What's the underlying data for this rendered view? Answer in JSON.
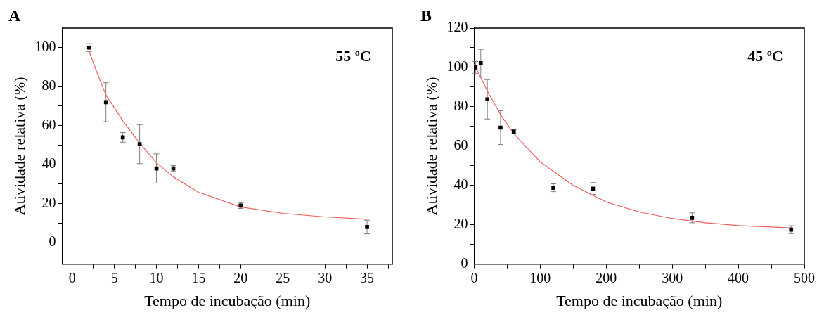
{
  "chart_data": [
    {
      "type": "scatter",
      "title": "A",
      "xlabel": "Tempo de incubação (min)",
      "ylabel": "Atividade relativa (%)",
      "annotations": [
        "55 ºC"
      ],
      "grid": false,
      "legend": false,
      "xlim": [
        -1.2,
        38
      ],
      "ylim": [
        -11,
        110
      ],
      "xticks": [
        0,
        {
          "value": 2.5,
          "label": null
        },
        5,
        {
          "value": 7.5,
          "label": null
        },
        10,
        {
          "value": 12.5,
          "label": null
        },
        15,
        {
          "value": 17.5,
          "label": null
        },
        20,
        {
          "value": 22.5,
          "label": null
        },
        25,
        {
          "value": 27.5,
          "label": null
        },
        30,
        {
          "value": 32.5,
          "label": null
        },
        35,
        {
          "value": 37.5,
          "label": null
        }
      ],
      "yticks": [
        0,
        {
          "value": 10,
          "label": null
        },
        20,
        {
          "value": 30,
          "label": null
        },
        40,
        {
          "value": 50,
          "label": null
        },
        60,
        {
          "value": 70,
          "label": null
        },
        80,
        {
          "value": 90,
          "label": null
        },
        100
      ],
      "series": [
        {
          "type": "scatter",
          "marker": "square",
          "color": "#000000",
          "x": [
            2,
            4,
            6,
            8,
            10,
            12,
            20,
            35
          ],
          "values": [
            100,
            72,
            54,
            50.5,
            38,
            38,
            19,
            8
          ],
          "errors": [
            2,
            10,
            2.5,
            10,
            7.5,
            1.5,
            1.5,
            3.5
          ]
        },
        {
          "type": "line",
          "color": "#f25c5c",
          "x": [
            2,
            3,
            4,
            6,
            8,
            10,
            12,
            15,
            20,
            25,
            30,
            35
          ],
          "values": [
            98,
            86.5,
            75.7,
            62.5,
            51,
            40.9,
            33.7,
            25.8,
            18.3,
            15,
            13.2,
            12
          ]
        }
      ]
    },
    {
      "type": "scatter",
      "title": "B",
      "xlabel": "Tempo de incubação (min)",
      "ylabel": "Atividade relativa (%)",
      "annotations": [
        "45 ºC"
      ],
      "grid": false,
      "legend": false,
      "xlim": [
        0,
        500
      ],
      "ylim": [
        0,
        120
      ],
      "xticks": [
        0,
        {
          "value": 50,
          "label": null
        },
        100,
        {
          "value": 150,
          "label": null
        },
        200,
        {
          "value": 250,
          "label": null
        },
        300,
        {
          "value": 350,
          "label": null
        },
        400,
        {
          "value": 450,
          "label": null
        },
        500
      ],
      "yticks": [
        0,
        {
          "value": 10,
          "label": null
        },
        20,
        {
          "value": 30,
          "label": null
        },
        40,
        {
          "value": 50,
          "label": null
        },
        60,
        {
          "value": 70,
          "label": null
        },
        80,
        {
          "value": 90,
          "label": null
        },
        100,
        {
          "value": 110,
          "label": null
        },
        120
      ],
      "series": [
        {
          "type": "scatter",
          "marker": "square",
          "color": "#000000",
          "x": [
            2,
            10,
            20,
            40,
            60,
            120,
            180,
            330,
            480
          ],
          "values": [
            100,
            102.2,
            83.8,
            69.4,
            67.3,
            38.8,
            38.4,
            23.5,
            17.5
          ],
          "errors": [
            3,
            7,
            10,
            8.6,
            1,
            2,
            3,
            2.5,
            2
          ]
        },
        {
          "type": "line",
          "color": "#f25c5c",
          "x": [
            0,
            20,
            40,
            60,
            100,
            150,
            200,
            250,
            300,
            350,
            400,
            480
          ],
          "values": [
            101.8,
            88,
            76,
            66.4,
            52,
            40,
            31.6,
            26.5,
            23.2,
            21,
            19.6,
            18.4
          ]
        }
      ]
    }
  ]
}
